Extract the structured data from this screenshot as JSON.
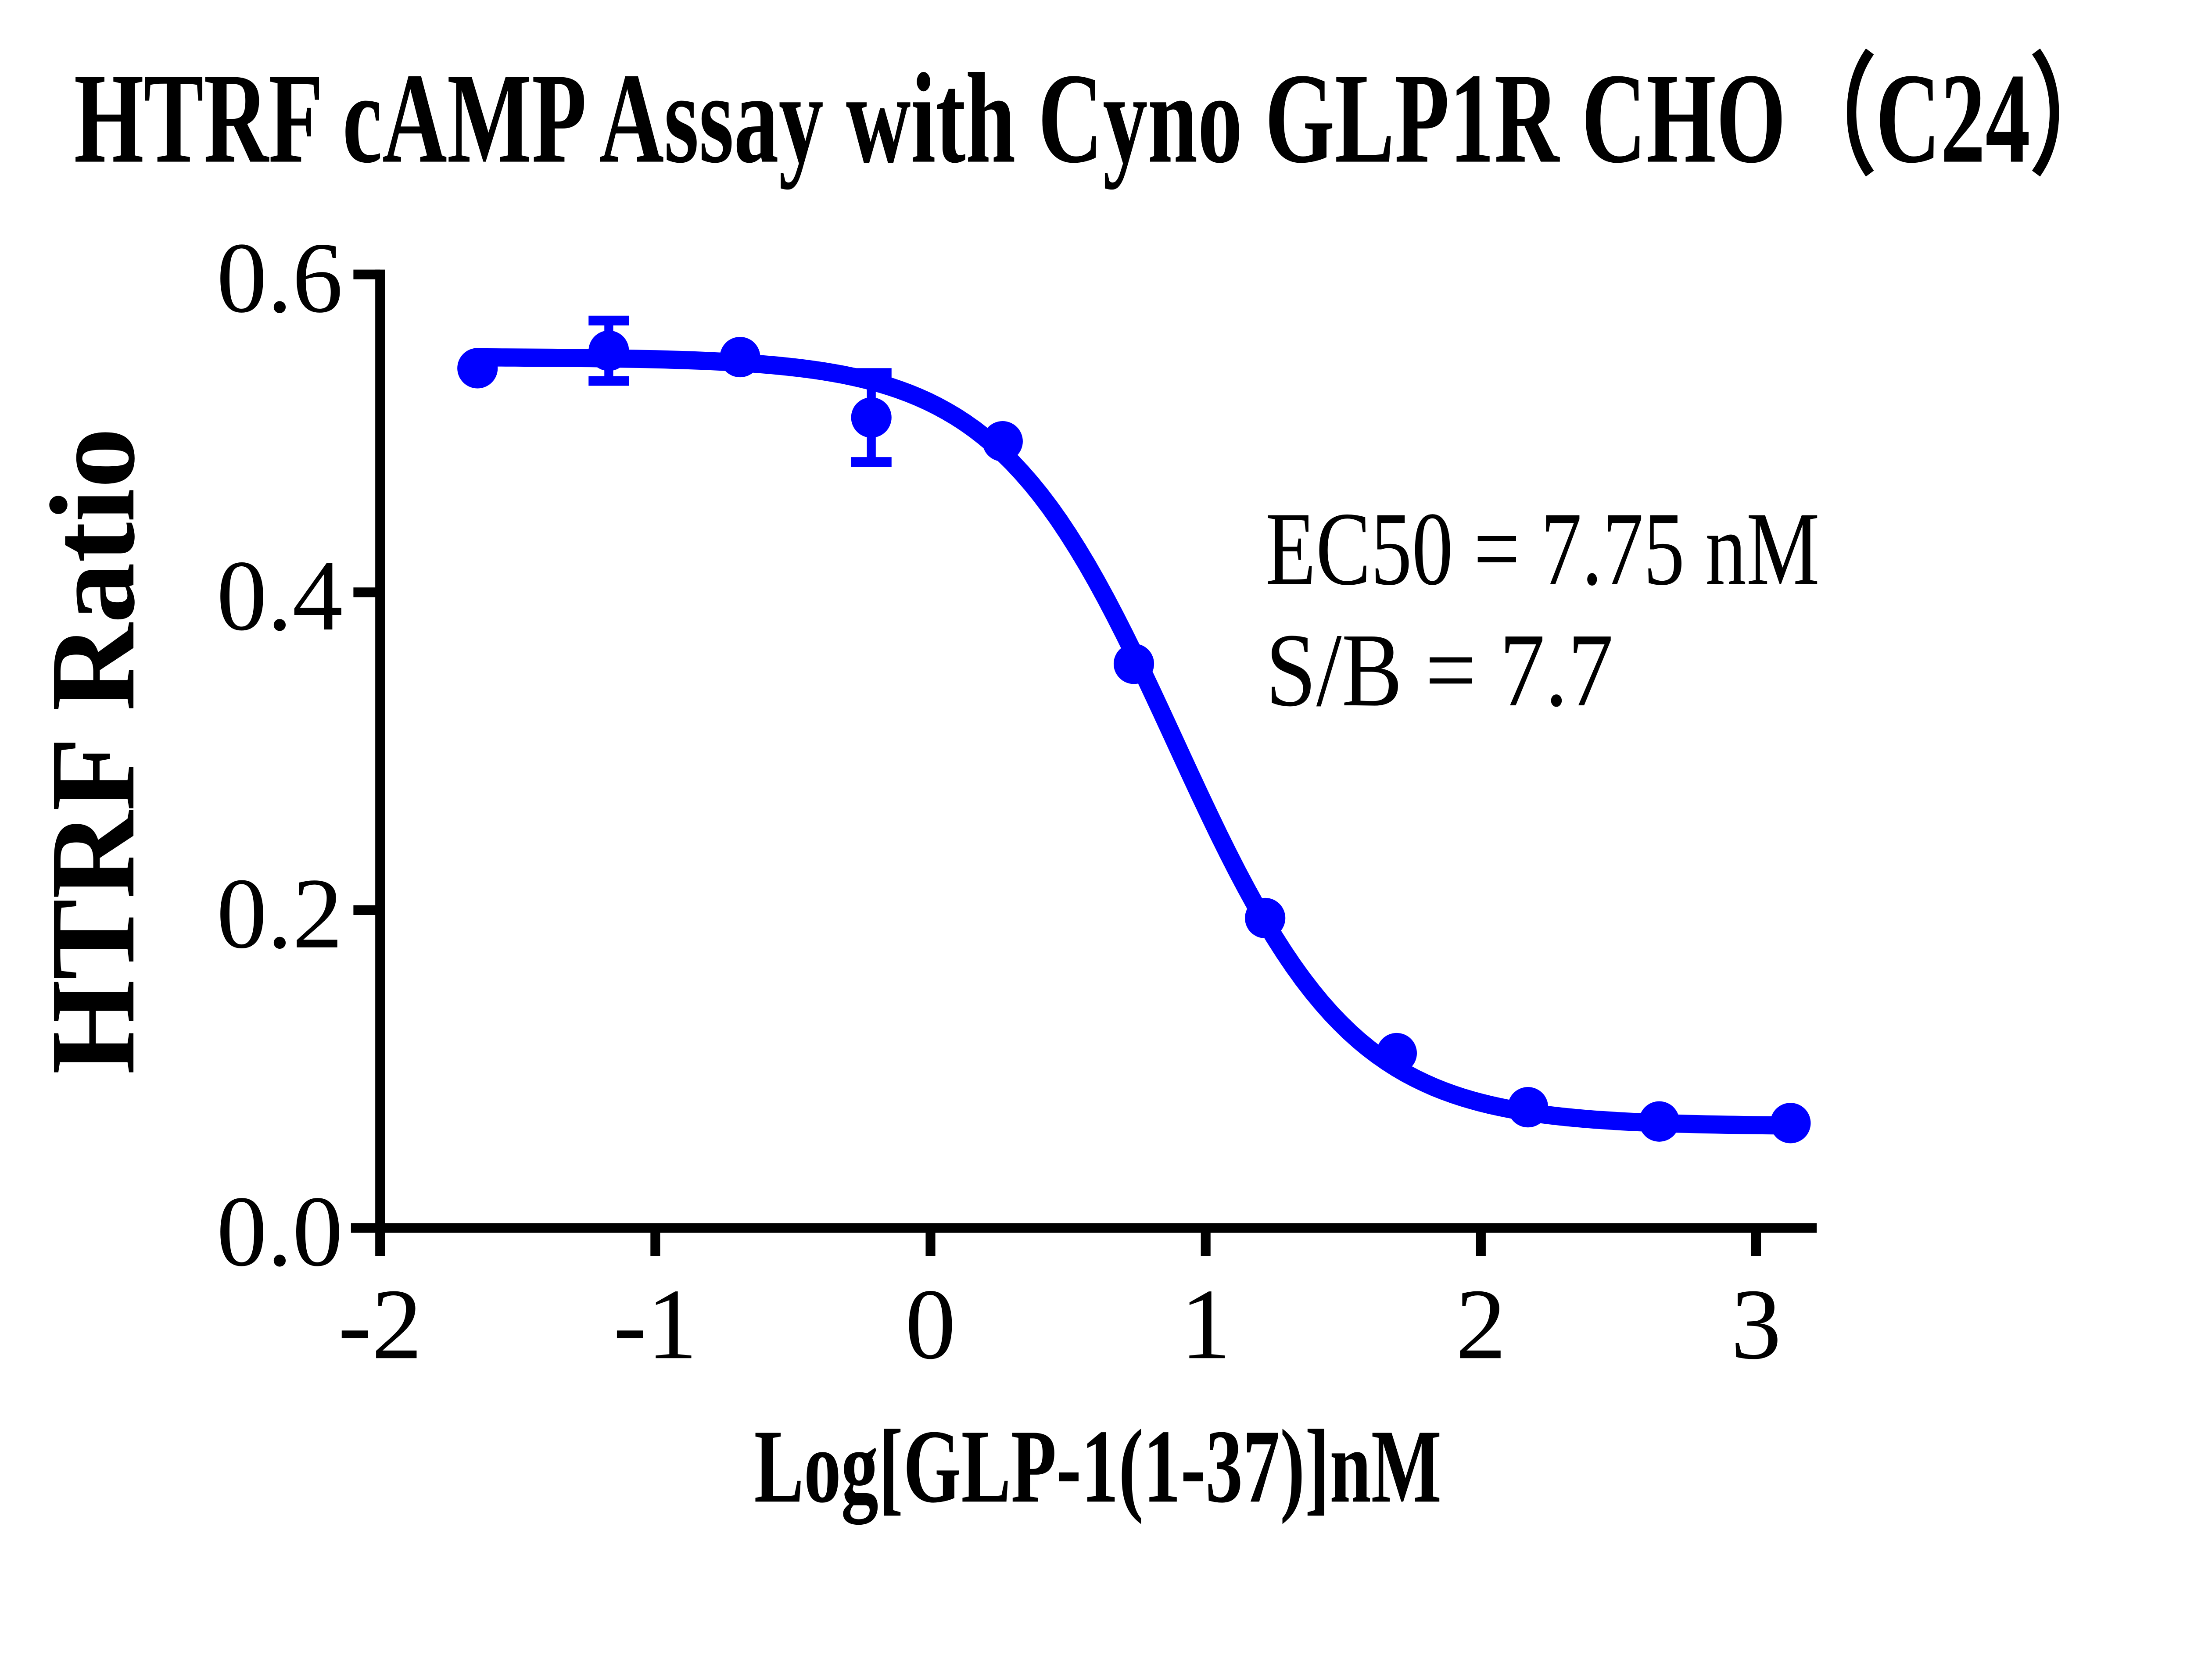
{
  "title": "HTRF cAMP Assay with Cyno GLP1R CHO（C24）",
  "annotation": {
    "line1": "EC50 = 7.75 nM",
    "line2": "S/B = 7.7"
  },
  "colors": {
    "series": "#0000FF",
    "axis": "#000000",
    "background": "#FFFFFF"
  },
  "chart_data": {
    "type": "scatter",
    "title": "HTRF cAMP Assay with Cyno GLP1R CHO（C24）",
    "xlabel": "Log[GLP-1(1-37)]nM",
    "ylabel": "HTRF Ratio",
    "x_ticks": [
      -2,
      -1,
      0,
      1,
      2,
      3
    ],
    "x_tick_labels": [
      "-2",
      "-1",
      "0",
      "1",
      "2",
      "3"
    ],
    "y_ticks": [
      0.0,
      0.2,
      0.4,
      0.6
    ],
    "y_tick_labels": [
      "0.0",
      "0.2",
      "0.4",
      "0.6"
    ],
    "xlim": [
      -2.11,
      3.22
    ],
    "ylim": [
      0.0,
      0.6
    ],
    "grid": false,
    "legend_position": "none",
    "series": [
      {
        "name": "GLP-1(1-37)",
        "marker": "circle",
        "points": [
          {
            "x": -1.646,
            "y": 0.541
          },
          {
            "x": -1.169,
            "y": 0.552,
            "err": 0.019
          },
          {
            "x": -0.692,
            "y": 0.548
          },
          {
            "x": -0.215,
            "y": 0.51,
            "err": 0.028
          },
          {
            "x": 0.262,
            "y": 0.495
          },
          {
            "x": 0.739,
            "y": 0.355
          },
          {
            "x": 1.216,
            "y": 0.195
          },
          {
            "x": 1.694,
            "y": 0.11
          },
          {
            "x": 2.171,
            "y": 0.076
          },
          {
            "x": 2.648,
            "y": 0.067
          },
          {
            "x": 3.125,
            "y": 0.066
          }
        ],
        "fit_curve": {
          "model": "4PL",
          "top": 0.548,
          "bottom": 0.064,
          "logEC50": 0.889,
          "hill_slope": 1.35,
          "ec50_nM": 7.75,
          "x_start": -1.646,
          "x_end": 3.125
        }
      }
    ],
    "annotations": [
      "EC50 = 7.75 nM",
      "S/B = 7.7"
    ]
  }
}
